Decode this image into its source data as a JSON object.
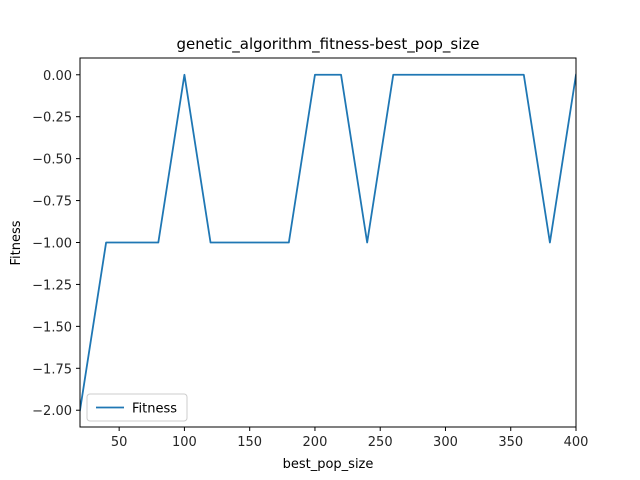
{
  "chart_data": {
    "type": "line",
    "title": "genetic_algorithm_fitness-best_pop_size",
    "xlabel": "best_pop_size",
    "ylabel": "Fitness",
    "xlim": [
      20,
      400
    ],
    "ylim": [
      -2.1,
      0.1
    ],
    "x_ticks": [
      50,
      100,
      150,
      200,
      250,
      300,
      350,
      400
    ],
    "x_tick_labels": [
      "50",
      "100",
      "150",
      "200",
      "250",
      "300",
      "350",
      "400"
    ],
    "y_ticks": [
      0,
      -0.25,
      -0.5,
      -0.75,
      -1.0,
      -1.25,
      -1.5,
      -1.75,
      -2.0
    ],
    "y_tick_labels": [
      "0.00",
      "−0.25",
      "−0.50",
      "−0.75",
      "−1.00",
      "−1.25",
      "−1.50",
      "−1.75",
      "−2.00"
    ],
    "grid": false,
    "legend_position": "lower-left",
    "series": [
      {
        "name": "Fitness",
        "color": "#1f77b4",
        "x": [
          20,
          40,
          60,
          80,
          100,
          120,
          140,
          160,
          180,
          200,
          220,
          240,
          260,
          280,
          300,
          320,
          340,
          360,
          380,
          400
        ],
        "y": [
          -2,
          -1,
          -1,
          -1,
          0,
          -1,
          -1,
          -1,
          -1,
          0,
          0,
          -1,
          0,
          0,
          0,
          0,
          0,
          0,
          -1,
          0
        ]
      }
    ]
  }
}
